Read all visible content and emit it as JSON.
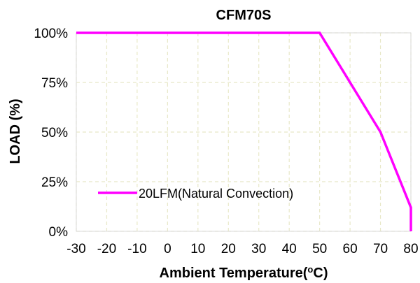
{
  "chart_data": {
    "type": "line",
    "title": "CFM70S",
    "xlabel": "Ambient Temperature",
    "xlabel_unit_prefix": "(",
    "xlabel_unit_sup": "o",
    "xlabel_unit_suffix": "C)",
    "ylabel": "LOAD (%)",
    "xlim": [
      -30,
      80
    ],
    "ylim": [
      0,
      100
    ],
    "x_ticks": [
      -30,
      -20,
      -10,
      0,
      10,
      20,
      30,
      40,
      50,
      60,
      70,
      80
    ],
    "y_ticks": [
      0,
      25,
      50,
      75,
      100
    ],
    "y_tick_labels": [
      "0%",
      "25%",
      "50%",
      "75%",
      "100%"
    ],
    "grid": true,
    "grid_style": "dashed",
    "legend_position": "bottom-left",
    "series": [
      {
        "name": "20LFM(Natural Convection)",
        "color": "#ff00ff",
        "x": [
          -30,
          50,
          70,
          80,
          80
        ],
        "y": [
          100,
          100,
          50,
          12,
          0
        ]
      }
    ]
  }
}
